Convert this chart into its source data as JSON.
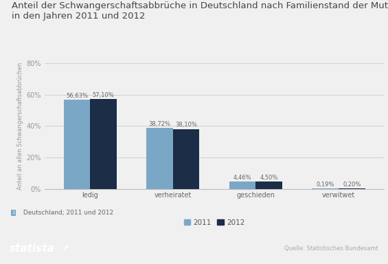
{
  "title_line1": "Anteil der Schwangerschaftsabbrüche in Deutschland nach Familienstand der Mutter",
  "title_line2": "in den Jahren 2011 und 2012",
  "categories": [
    "ledig",
    "verheiratet",
    "geschieden",
    "verwitwet"
  ],
  "values_2011": [
    56.63,
    38.72,
    4.46,
    0.19
  ],
  "values_2012": [
    57.1,
    38.1,
    4.5,
    0.2
  ],
  "labels_2011": [
    "56,63%",
    "38,72%",
    "4,46%",
    "0,19%"
  ],
  "labels_2012": [
    "57,10%",
    "38,10%",
    "4,50%",
    "0,20%"
  ],
  "color_2011": "#7ba7c7",
  "color_2012": "#1b2d47",
  "ylabel": "Anteil an allen Schwangerschaftsabbrüchen",
  "ylim": [
    0,
    80
  ],
  "yticks": [
    0,
    20,
    40,
    60,
    80
  ],
  "ytick_labels": [
    "0%",
    "20%",
    "40%",
    "60%",
    "80%"
  ],
  "legend_labels": [
    "2011",
    "2012"
  ],
  "footnote_num": "1",
  "footnote_text": " Deutschland; 2011 und 2012",
  "source": "Quelle: Statistisches Bundesamt",
  "statista_text": "statista",
  "bg_color": "#f0f0f0",
  "footer_bg_color": "#1b2d47",
  "bar_width": 0.32,
  "title_fontsize": 9.5,
  "axis_label_fontsize": 6.0,
  "tick_fontsize": 7.0,
  "value_label_fontsize": 6.0,
  "legend_fontsize": 7.5,
  "footnote_fontsize": 6.5
}
